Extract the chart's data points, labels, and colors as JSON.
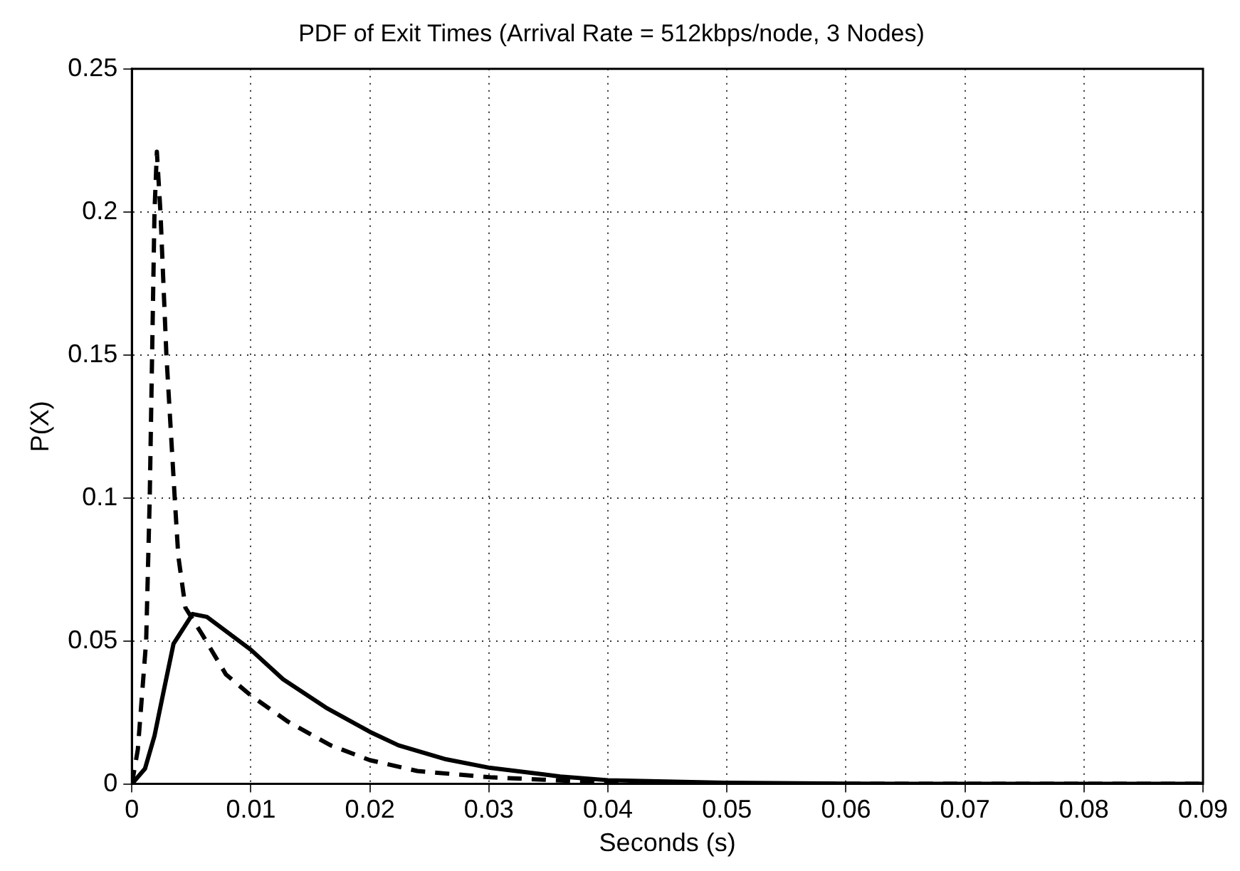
{
  "chart_data": {
    "type": "line",
    "title": "PDF of Exit Times (Arrival Rate = 512kbps/node, 3 Nodes)",
    "xlabel": "Seconds (s)",
    "ylabel": "P(X)",
    "xlim": [
      0,
      0.09
    ],
    "xticks": [
      0,
      0.01,
      0.02,
      0.03,
      0.04,
      0.05,
      0.06,
      0.07,
      0.08,
      0.09
    ],
    "ylim": [
      0,
      0.25
    ],
    "yticks": [
      0,
      0.05,
      0.1,
      0.15,
      0.2,
      0.25
    ],
    "grid": true,
    "marker": "none",
    "series": [
      {
        "color": "#000000",
        "line_style": "solid",
        "x": [
          0,
          0.0011,
          0.0019,
          0.0027,
          0.0035,
          0.0051,
          0.0063,
          0.01,
          0.0127,
          0.0163,
          0.02,
          0.0224,
          0.0264,
          0.0301,
          0.036,
          0.04,
          0.05,
          0.06,
          0.07,
          0.08,
          0.09
        ],
        "values": [
          0,
          0.0053,
          0.0168,
          0.033,
          0.049,
          0.0594,
          0.0584,
          0.0469,
          0.0366,
          0.0267,
          0.0182,
          0.0135,
          0.0086,
          0.0056,
          0.0026,
          0.0013,
          0.0004,
          0.0001,
          0,
          0,
          0
        ]
      },
      {
        "color": "#000000",
        "line_style": "dashed",
        "x": [
          0,
          0.0005,
          0.0012,
          0.0015,
          0.0017,
          0.0019,
          0.0021,
          0.0024,
          0.0029,
          0.0036,
          0.0039,
          0.0045,
          0.0059,
          0.0079,
          0.01,
          0.0131,
          0.0167,
          0.02,
          0.024,
          0.0301,
          0.036,
          0.04,
          0.05,
          0.06,
          0.07,
          0.08,
          0.09
        ],
        "values": [
          0,
          0.012,
          0.05,
          0.1,
          0.15,
          0.2,
          0.221,
          0.2,
          0.15,
          0.1,
          0.0797,
          0.0616,
          0.0523,
          0.0383,
          0.0309,
          0.0218,
          0.0135,
          0.0083,
          0.0045,
          0.0023,
          0.0012,
          0.0006,
          0.0001,
          0,
          0,
          0,
          0
        ]
      }
    ]
  }
}
